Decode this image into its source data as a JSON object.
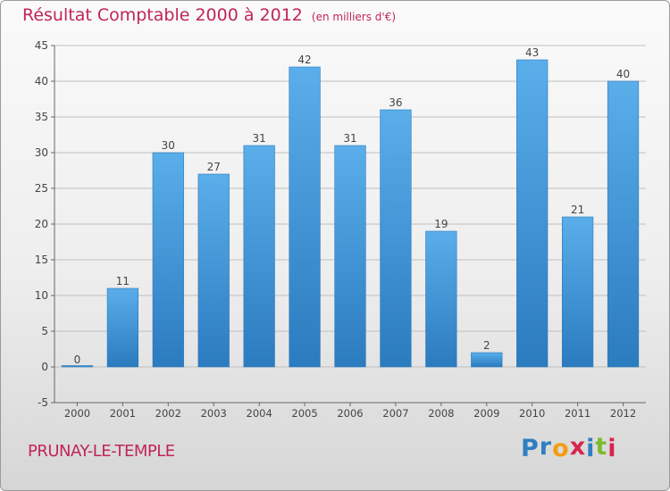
{
  "chart_data": {
    "type": "bar",
    "title": "Résultat Comptable 2000 à 2012",
    "subtitle": "(en milliers d'€)",
    "xlabel": "",
    "ylabel": "",
    "categories": [
      "2000",
      "2001",
      "2002",
      "2003",
      "2004",
      "2005",
      "2006",
      "2007",
      "2008",
      "2009",
      "2010",
      "2011",
      "2012"
    ],
    "values": [
      0,
      11,
      30,
      27,
      31,
      42,
      31,
      36,
      19,
      2,
      43,
      21,
      40
    ],
    "ylim": [
      -5,
      45
    ],
    "yticks": [
      -5,
      0,
      5,
      10,
      15,
      20,
      25,
      30,
      35,
      40,
      45
    ],
    "grid": true,
    "bar_color": "#4a9ee0"
  },
  "footer": {
    "commune": "PRUNAY-LE-TEMPLE",
    "logo_letters": [
      "P",
      "r",
      "o",
      "x",
      "i",
      "t",
      "i"
    ],
    "logo_colors": [
      "#2f7fc1",
      "#2f7fc1",
      "#f39c12",
      "#d6254b",
      "#2f7fc1",
      "#7dba2f",
      "#d6254b"
    ]
  },
  "colors": {
    "title": "#c0255a",
    "grid": "#bfbfbf",
    "text": "#444444"
  }
}
